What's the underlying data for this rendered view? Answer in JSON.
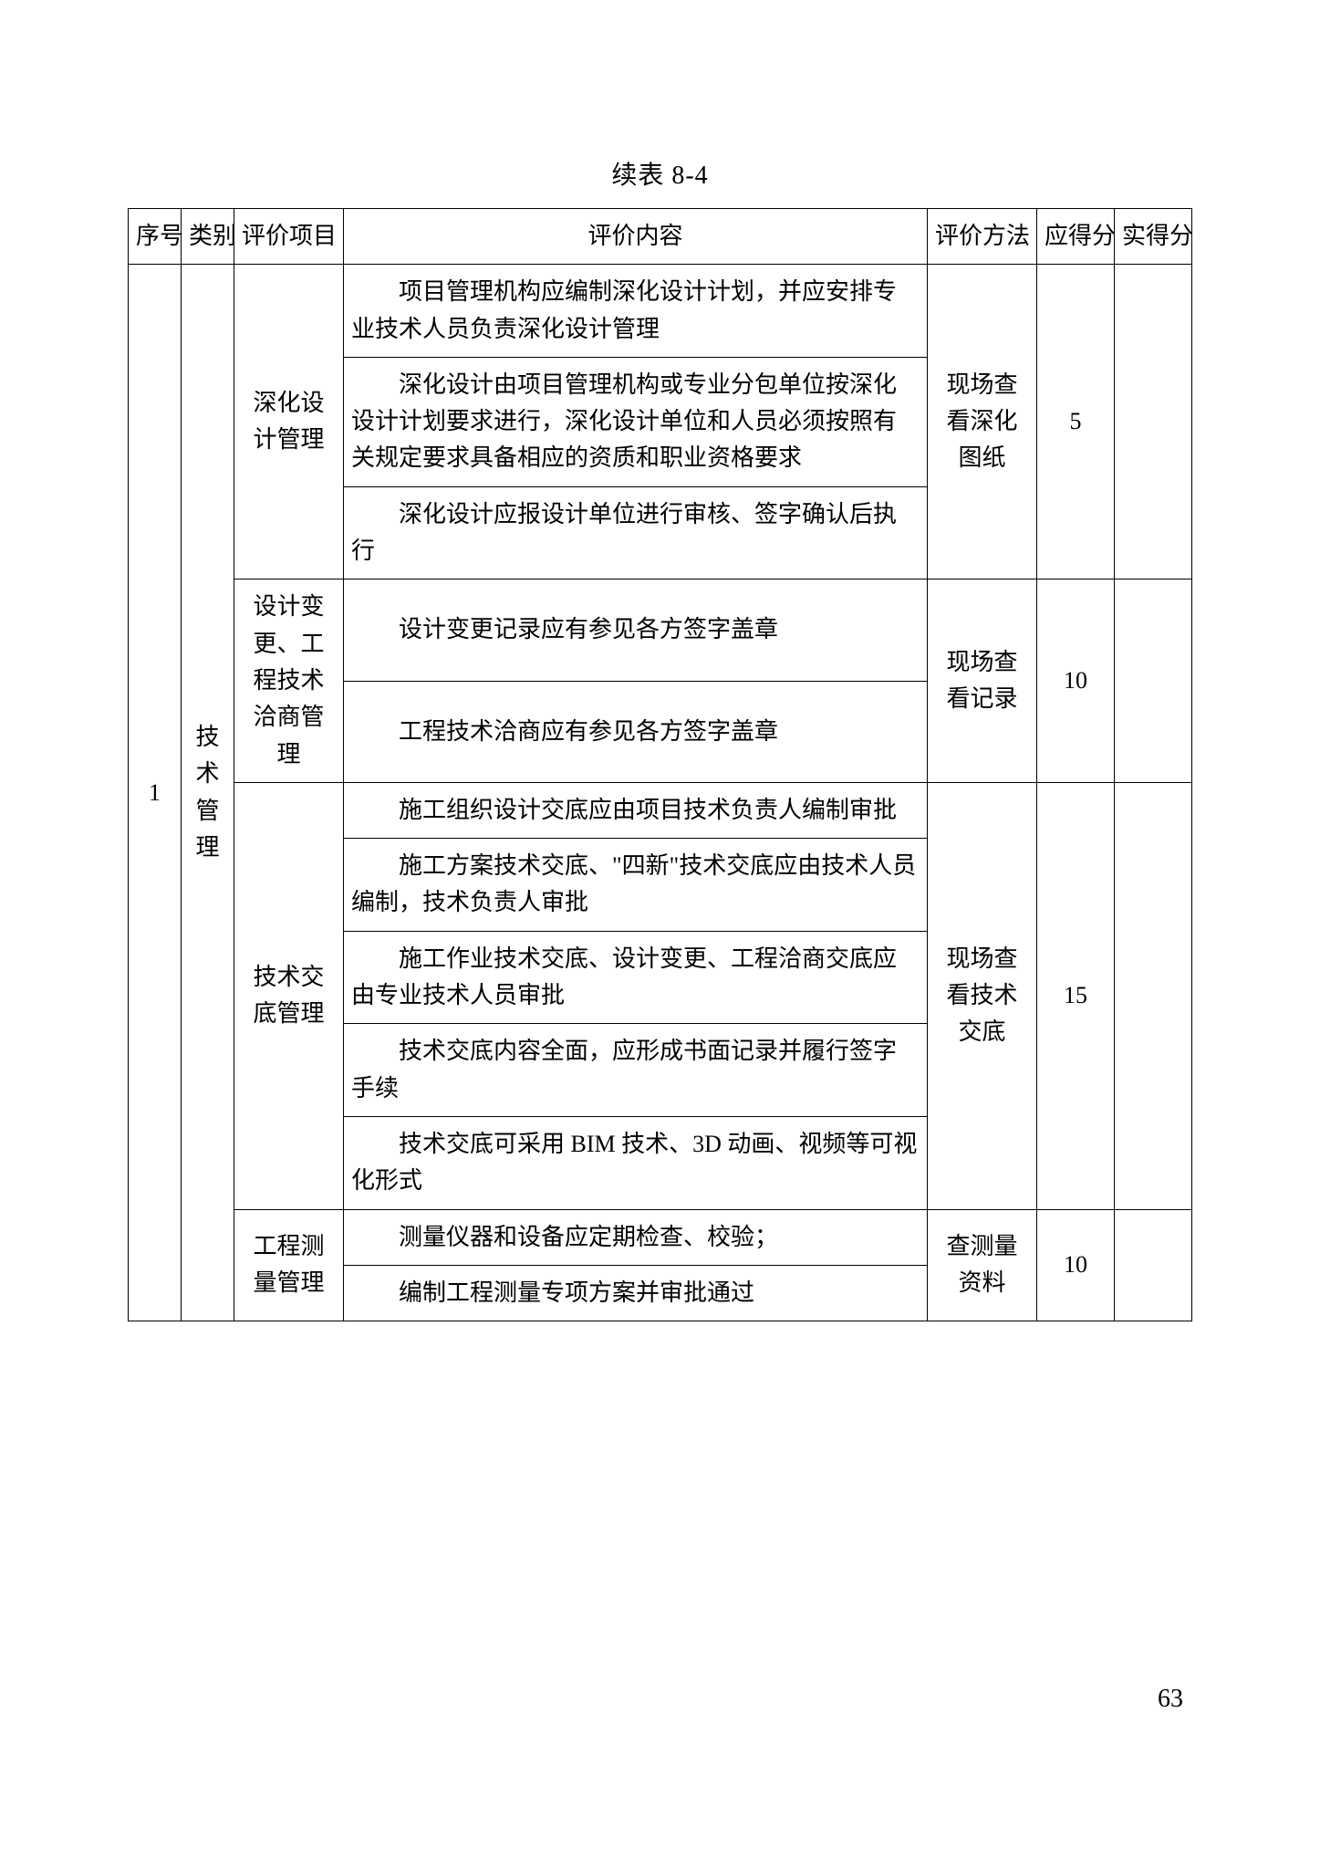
{
  "caption": "续表 8-4",
  "pageNumber": "63",
  "columns": [
    "序号",
    "类别",
    "评价项目",
    "评价内容",
    "评价方法",
    "应得分",
    "实得分"
  ],
  "colWidths": {
    "seq": 58,
    "cat": 58,
    "item": 120,
    "method": 120,
    "score": 85,
    "actual": 85
  },
  "font": {
    "bodySizePx": 26,
    "lineHeight": 1.55,
    "captionSizePx": 28,
    "family": "SimSun"
  },
  "colors": {
    "background": "#ffffff",
    "text": "#000000",
    "border": "#000000"
  },
  "seq": "1",
  "category": "技术管理",
  "groups": [
    {
      "item": "深化设计管理",
      "method": "现场查看深化图纸",
      "score": "5",
      "contents": [
        "项目管理机构应编制深化设计计划，并应安排专业技术人员负责深化设计管理",
        "深化设计由项目管理机构或专业分包单位按深化设计计划要求进行，深化设计单位和人员必须按照有关规定要求具备相应的资质和职业资格要求",
        "深化设计应报设计单位进行审核、签字确认后执行"
      ]
    },
    {
      "item": "设计变更、工程技术洽商管理",
      "method": "现场查看记录",
      "score": "10",
      "contents": [
        "设计变更记录应有参见各方签字盖章",
        "工程技术洽商应有参见各方签字盖章"
      ]
    },
    {
      "item": "技术交底管理",
      "method": "现场查看技术交底",
      "score": "15",
      "contents": [
        "施工组织设计交底应由项目技术负责人编制审批",
        "施工方案技术交底、\"四新\"技术交底应由技术人员编制，技术负责人审批",
        "施工作业技术交底、设计变更、工程洽商交底应由专业技术人员审批",
        "技术交底内容全面，应形成书面记录并履行签字手续",
        "技术交底可采用 BIM 技术、3D 动画、视频等可视化形式"
      ]
    },
    {
      "item": "工程测量管理",
      "method": "查测量资料",
      "score": "10",
      "contents": [
        "测量仪器和设备应定期检查、校验；",
        "编制工程测量专项方案并审批通过"
      ]
    }
  ]
}
